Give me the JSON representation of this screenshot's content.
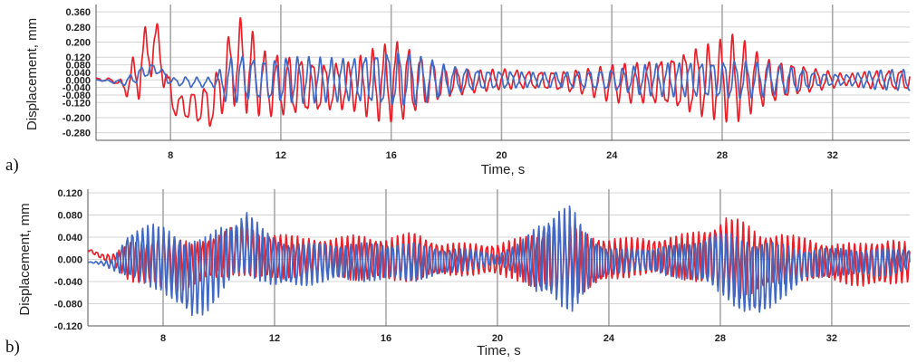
{
  "chart_data": [
    {
      "panel": "a)",
      "type": "line",
      "xlabel": "Time, s",
      "ylabel": "Displacement, mm",
      "xlim": [
        5.3,
        34.8
      ],
      "ylim": [
        -0.32,
        0.38
      ],
      "xticks": [
        8,
        12,
        16,
        20,
        24,
        28,
        32
      ],
      "xtick_labels": [
        "8",
        "12",
        "16",
        "20",
        "24",
        "28",
        "32"
      ],
      "yticks": [
        0.36,
        0.28,
        0.2,
        0.12,
        0.08,
        0.04,
        0.0,
        -0.04,
        -0.08,
        -0.12,
        -0.2,
        -0.28
      ],
      "ytick_labels": [
        "0.360",
        "0.280",
        "0.200",
        "0.120",
        "0.080",
        "0.040",
        "0.000",
        "-0.040",
        "-0.080",
        "-0.120",
        "-0.200",
        "-0.280"
      ],
      "grid": true,
      "series": [
        {
          "color": "#e8202a",
          "envelope": {
            "x": [
              5.3,
              6.0,
              6.3,
              6.8,
              7.2,
              7.6,
              7.9,
              8.2,
              8.7,
              9.2,
              9.6,
              10.0,
              10.4,
              10.8,
              11.5,
              12.5,
              13.5,
              14.5,
              15.5,
              16.3,
              17.0,
              18.0,
              19.0,
              20.0,
              21.0,
              22.0,
              23.0,
              24.0,
              25.0,
              26.0,
              27.0,
              28.0,
              28.5,
              29.5,
              30.5,
              31.5,
              32.5,
              33.5,
              34.8
            ],
            "upper": [
              0.01,
              0.01,
              0.0,
              0.18,
              0.33,
              0.3,
              0.05,
              -0.08,
              -0.06,
              -0.03,
              0.03,
              0.2,
              0.35,
              0.3,
              0.14,
              0.14,
              0.1,
              0.1,
              0.18,
              0.22,
              0.15,
              0.08,
              0.05,
              0.06,
              0.05,
              0.05,
              0.06,
              0.08,
              0.1,
              0.13,
              0.18,
              0.22,
              0.25,
              0.13,
              0.1,
              0.06,
              0.03,
              0.05,
              0.06
            ],
            "lower": [
              0.0,
              -0.02,
              -0.08,
              -0.12,
              0.0,
              0.05,
              -0.15,
              -0.2,
              -0.22,
              -0.25,
              -0.27,
              -0.15,
              -0.14,
              -0.18,
              -0.2,
              -0.2,
              -0.18,
              -0.16,
              -0.22,
              -0.24,
              -0.18,
              -0.1,
              -0.07,
              -0.05,
              -0.05,
              -0.06,
              -0.08,
              -0.12,
              -0.13,
              -0.15,
              -0.2,
              -0.22,
              -0.23,
              -0.15,
              -0.1,
              -0.06,
              -0.03,
              -0.05,
              -0.06
            ]
          }
        },
        {
          "color": "#4169c4",
          "envelope": {
            "x": [
              5.3,
              6.0,
              6.3,
              6.8,
              7.2,
              7.6,
              7.9,
              8.2,
              8.7,
              9.2,
              9.6,
              10.0,
              10.4,
              10.8,
              11.5,
              12.5,
              13.5,
              14.5,
              15.5,
              16.3,
              17.0,
              18.0,
              19.0,
              20.0,
              21.0,
              22.0,
              23.0,
              24.0,
              25.0,
              26.0,
              27.0,
              28.0,
              28.5,
              29.5,
              30.5,
              31.5,
              32.5,
              33.5,
              34.8
            ],
            "upper": [
              0.0,
              0.0,
              0.0,
              0.06,
              0.09,
              0.08,
              0.02,
              0.01,
              0.02,
              0.01,
              0.02,
              0.1,
              0.15,
              0.13,
              0.12,
              0.13,
              0.12,
              0.12,
              0.16,
              0.16,
              0.13,
              0.08,
              0.06,
              0.05,
              0.04,
              0.04,
              0.05,
              0.06,
              0.08,
              0.09,
              0.1,
              0.11,
              0.11,
              0.09,
              0.07,
              0.04,
              0.03,
              0.05,
              0.06
            ],
            "lower": [
              0.0,
              -0.02,
              -0.03,
              -0.02,
              0.02,
              0.03,
              -0.02,
              -0.03,
              -0.04,
              -0.04,
              -0.04,
              -0.12,
              -0.13,
              -0.12,
              -0.12,
              -0.13,
              -0.12,
              -0.12,
              -0.15,
              -0.15,
              -0.13,
              -0.08,
              -0.06,
              -0.05,
              -0.04,
              -0.04,
              -0.05,
              -0.06,
              -0.08,
              -0.09,
              -0.1,
              -0.11,
              -0.11,
              -0.09,
              -0.07,
              -0.04,
              -0.03,
              -0.05,
              -0.06
            ]
          }
        }
      ]
    },
    {
      "panel": "b)",
      "type": "line",
      "xlabel": "Time, s",
      "ylabel": "Displacement, mm",
      "xlim": [
        5.3,
        34.8
      ],
      "ylim": [
        -0.12,
        0.12
      ],
      "xticks": [
        8,
        12,
        16,
        20,
        24,
        28,
        32
      ],
      "xtick_labels": [
        "8",
        "12",
        "16",
        "20",
        "24",
        "28",
        "32"
      ],
      "yticks": [
        0.12,
        0.08,
        0.04,
        0.0,
        -0.04,
        -0.08,
        -0.12
      ],
      "ytick_labels": [
        "0.120",
        "0.080",
        "0.040",
        "0.000",
        "-0.040",
        "-0.080",
        "-0.120"
      ],
      "grid": true,
      "series": [
        {
          "color": "#e8202a",
          "envelope": {
            "x": [
              5.3,
              5.8,
              6.2,
              6.8,
              7.5,
              8.0,
              8.5,
              9.0,
              9.5,
              10.0,
              10.5,
              11.0,
              11.5,
              12.0,
              13.0,
              14.0,
              15.0,
              16.0,
              17.0,
              18.0,
              19.0,
              20.0,
              20.8,
              21.5,
              22.0,
              22.6,
              23.2,
              24.0,
              25.0,
              26.0,
              27.0,
              27.6,
              28.2,
              28.8,
              29.4,
              30.0,
              31.0,
              32.0,
              33.0,
              34.0,
              34.8
            ],
            "upper": [
              0.02,
              0.01,
              0.01,
              0.03,
              0.04,
              0.05,
              0.04,
              0.03,
              0.04,
              0.05,
              0.06,
              0.06,
              0.05,
              0.05,
              0.04,
              0.04,
              0.045,
              0.04,
              0.05,
              0.03,
              0.03,
              0.03,
              0.04,
              0.05,
              0.07,
              0.06,
              0.05,
              0.04,
              0.04,
              0.04,
              0.05,
              0.06,
              0.08,
              0.07,
              0.05,
              0.05,
              0.04,
              0.03,
              0.03,
              0.04,
              0.03
            ],
            "lower": [
              0.015,
              0.0,
              -0.01,
              -0.04,
              -0.05,
              -0.06,
              -0.06,
              -0.05,
              -0.04,
              -0.04,
              -0.03,
              -0.03,
              -0.04,
              -0.04,
              -0.03,
              -0.03,
              -0.04,
              -0.04,
              -0.04,
              -0.03,
              -0.03,
              -0.03,
              -0.04,
              -0.06,
              -0.06,
              -0.07,
              -0.06,
              -0.04,
              -0.03,
              -0.03,
              -0.04,
              -0.05,
              -0.07,
              -0.07,
              -0.06,
              -0.05,
              -0.04,
              -0.04,
              -0.05,
              -0.05,
              -0.04
            ]
          }
        },
        {
          "color": "#4169c4",
          "envelope": {
            "x": [
              5.3,
              5.8,
              6.2,
              6.8,
              7.5,
              8.0,
              8.5,
              9.0,
              9.5,
              10.0,
              10.5,
              11.0,
              11.5,
              12.0,
              13.0,
              14.0,
              15.0,
              16.0,
              17.0,
              18.0,
              19.0,
              20.0,
              20.8,
              21.5,
              22.0,
              22.6,
              23.2,
              24.0,
              25.0,
              26.0,
              27.0,
              27.6,
              28.2,
              28.8,
              29.4,
              30.0,
              31.0,
              32.0,
              33.0,
              34.0,
              34.8
            ],
            "upper": [
              -0.005,
              -0.003,
              0.0,
              0.055,
              0.065,
              0.06,
              0.05,
              0.04,
              0.04,
              0.06,
              0.07,
              0.09,
              0.06,
              0.04,
              0.03,
              0.03,
              0.03,
              0.03,
              0.03,
              0.02,
              0.02,
              0.01,
              0.03,
              0.07,
              0.09,
              0.1,
              0.05,
              0.02,
              0.02,
              0.025,
              0.03,
              0.05,
              0.05,
              0.04,
              0.04,
              0.03,
              0.02,
              0.02,
              0.02,
              0.02,
              0.02
            ],
            "lower": [
              -0.005,
              -0.01,
              -0.02,
              -0.04,
              -0.05,
              -0.06,
              -0.09,
              -0.11,
              -0.1,
              -0.07,
              -0.04,
              -0.03,
              -0.04,
              -0.05,
              -0.05,
              -0.04,
              -0.04,
              -0.04,
              -0.04,
              -0.03,
              -0.02,
              -0.01,
              -0.03,
              -0.07,
              -0.08,
              -0.1,
              -0.06,
              -0.03,
              -0.02,
              -0.03,
              -0.04,
              -0.05,
              -0.07,
              -0.1,
              -0.11,
              -0.08,
              -0.04,
              -0.03,
              -0.03,
              -0.03,
              -0.02
            ]
          }
        }
      ]
    }
  ]
}
